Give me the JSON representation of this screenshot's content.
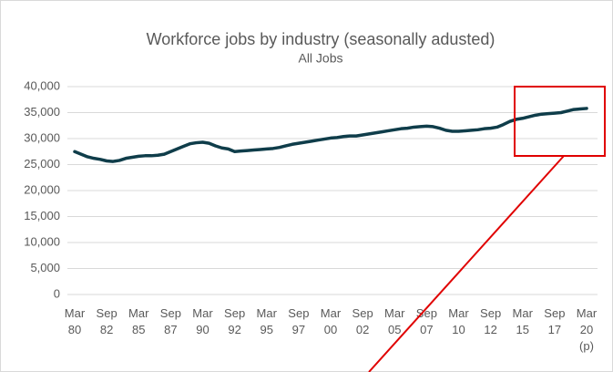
{
  "chart_data": {
    "type": "line",
    "title": "Workforce jobs by industry (seasonally adusted)",
    "subtitle": "All Jobs",
    "categories": [
      "Mar 80",
      null,
      null,
      null,
      null,
      "Sep 82",
      null,
      null,
      null,
      null,
      "Mar 85",
      null,
      null,
      null,
      null,
      "Sep 87",
      null,
      null,
      null,
      null,
      "Mar 90",
      null,
      null,
      null,
      null,
      "Sep 92",
      null,
      null,
      null,
      null,
      "Mar 95",
      null,
      null,
      null,
      null,
      "Sep 97",
      null,
      null,
      null,
      null,
      "Mar 00",
      null,
      null,
      null,
      null,
      "Sep 02",
      null,
      null,
      null,
      null,
      "Mar 05",
      null,
      null,
      null,
      null,
      "Sep 07",
      null,
      null,
      null,
      null,
      "Mar 10",
      null,
      null,
      null,
      null,
      "Sep 12",
      null,
      null,
      null,
      null,
      "Mar 15",
      null,
      null,
      null,
      null,
      "Sep 17",
      null,
      null,
      null,
      null,
      "Mar 20 (p)"
    ],
    "values": [
      27500,
      27000,
      26500,
      26200,
      26000,
      25700,
      25600,
      25800,
      26200,
      26400,
      26600,
      26700,
      26700,
      26800,
      27000,
      27500,
      28000,
      28500,
      29000,
      29200,
      29300,
      29100,
      28600,
      28200,
      28000,
      27500,
      27600,
      27700,
      27800,
      27900,
      28000,
      28100,
      28300,
      28600,
      28900,
      29100,
      29300,
      29500,
      29700,
      29900,
      30100,
      30200,
      30400,
      30500,
      30500,
      30700,
      30900,
      31100,
      31300,
      31500,
      31700,
      31900,
      32000,
      32200,
      32300,
      32400,
      32300,
      32000,
      31600,
      31400,
      31400,
      31500,
      31600,
      31700,
      31900,
      32000,
      32200,
      32700,
      33300,
      33700,
      33900,
      34200,
      34500,
      34700,
      34800,
      34900,
      35000,
      35300,
      35600,
      35700,
      35800
    ],
    "color": "#0f3d4a",
    "ylim": [
      0,
      40000
    ],
    "yticks": [
      0,
      {
        "value": 5000,
        "label": "5,000"
      },
      {
        "value": 10000,
        "label": "10,000"
      },
      {
        "value": 15000,
        "label": "15,000"
      },
      {
        "value": 20000,
        "label": "20,000"
      },
      {
        "value": 25000,
        "label": "25,000"
      },
      {
        "value": 30000,
        "label": "30,000"
      },
      {
        "value": 35000,
        "label": "35,000"
      },
      {
        "value": 40000,
        "label": "40,000"
      }
    ],
    "grid": true
  }
}
